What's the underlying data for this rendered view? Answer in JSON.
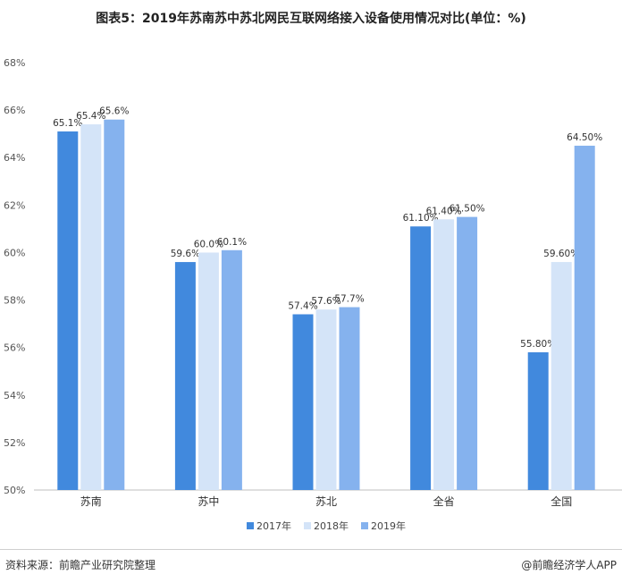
{
  "title": "图表5：2019年苏南苏中苏北网民互联网络接入设备使用情况对比(单位：%)",
  "source": "资料来源：前瞻产业研究院整理",
  "credit": "@前瞻经济学人APP",
  "colors": {
    "2017年": "#4189dd",
    "2018年": "#d4e4f8",
    "2019年": "#85b2ee"
  },
  "chart_data": {
    "type": "bar",
    "categories": [
      "苏南",
      "苏中",
      "苏北",
      "全省",
      "全国"
    ],
    "series": [
      {
        "name": "2017年",
        "values": [
          65.1,
          59.6,
          57.4,
          61.1,
          55.8
        ]
      },
      {
        "name": "2018年",
        "values": [
          65.4,
          60.0,
          57.6,
          61.4,
          59.6
        ]
      },
      {
        "name": "2019年",
        "values": [
          65.6,
          60.1,
          57.7,
          61.5,
          64.5
        ]
      }
    ],
    "data_labels": [
      [
        "65.1%",
        "65.4%",
        "65.6%"
      ],
      [
        "59.6%",
        "60.0%",
        "60.1%"
      ],
      [
        "57.4%",
        "57.6%",
        "57.7%"
      ],
      [
        "61.10%",
        "61.40%",
        "61.50%"
      ],
      [
        "55.80%",
        "59.60%",
        "64.50%"
      ]
    ],
    "yticks": [
      "50%",
      "52%",
      "54%",
      "56%",
      "58%",
      "60%",
      "62%",
      "64%",
      "66%",
      "68%"
    ],
    "ylim": [
      50,
      68
    ],
    "legend_position": "bottom",
    "grid": false
  }
}
